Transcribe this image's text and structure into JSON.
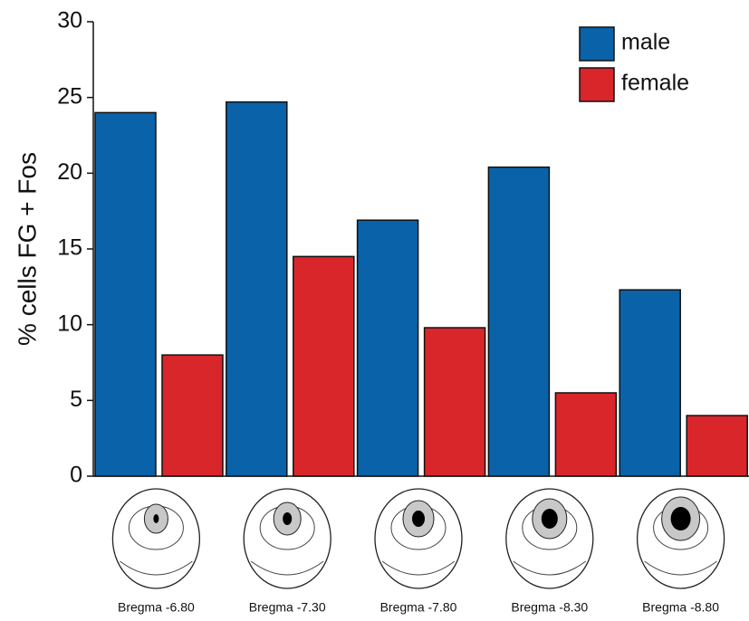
{
  "chart_data": {
    "type": "bar",
    "y_label": "% cells FG + Fos",
    "categories": [
      "Bregma -6.80",
      "Bregma -7.30",
      "Bregma -7.80",
      "Bregma -8.30",
      "Bregma -8.80"
    ],
    "series": [
      {
        "name": "male",
        "color": "#0a62a8",
        "values": [
          24.0,
          24.7,
          16.9,
          20.4,
          12.3
        ]
      },
      {
        "name": "female",
        "color": "#d8262a",
        "values": [
          8.0,
          14.5,
          9.8,
          5.5,
          4.0
        ]
      }
    ],
    "ylim": [
      0,
      30
    ],
    "yticks": [
      0,
      5,
      10,
      15,
      20,
      25,
      30
    ],
    "legend": "upper-right"
  }
}
